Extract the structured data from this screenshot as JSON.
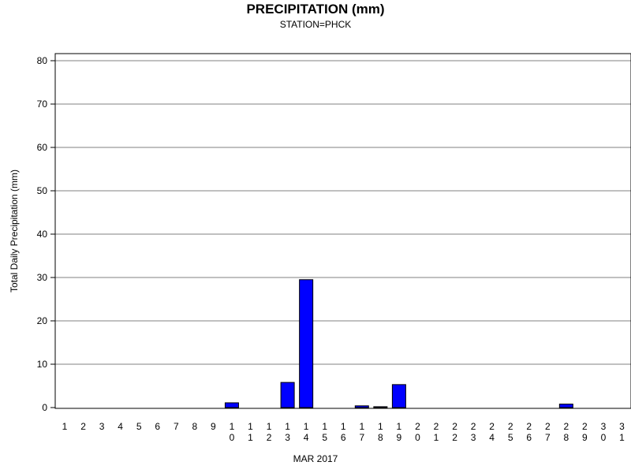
{
  "chart_data": {
    "type": "bar",
    "title": "PRECIPITATION (mm)",
    "subtitle": "STATION=PHCK",
    "xlabel": "MAR 2017",
    "ylabel": "Total Daily Precipitation (mm)",
    "ylim": [
      0,
      80
    ],
    "yticks": [
      0,
      10,
      20,
      30,
      40,
      50,
      60,
      70,
      80
    ],
    "grid": true,
    "bar_color": "#0000ff",
    "categories": [
      "1",
      "2",
      "3",
      "4",
      "5",
      "6",
      "7",
      "8",
      "9",
      "10",
      "11",
      "12",
      "13",
      "14",
      "15",
      "16",
      "17",
      "18",
      "19",
      "20",
      "21",
      "22",
      "23",
      "24",
      "25",
      "26",
      "27",
      "28",
      "29",
      "30",
      "31"
    ],
    "values": [
      0,
      0,
      0,
      0,
      0,
      0,
      0,
      0,
      0,
      1.1,
      0,
      0,
      5.8,
      29.5,
      0,
      0,
      0.4,
      0.2,
      5.3,
      0,
      0,
      0,
      0,
      0,
      0,
      0,
      0,
      0.8,
      0,
      0,
      0
    ]
  }
}
